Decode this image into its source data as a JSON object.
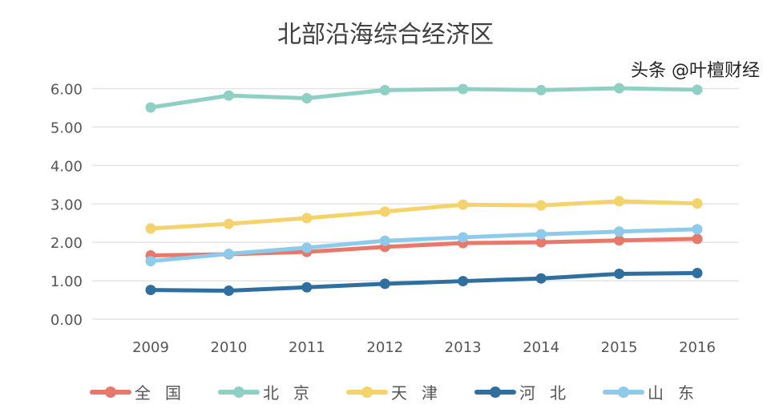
{
  "chart_data": {
    "type": "line",
    "title": "北部沿海综合经济区",
    "categories": [
      "2009",
      "2010",
      "2011",
      "2012",
      "2013",
      "2014",
      "2015",
      "2016"
    ],
    "ylim": [
      0,
      6
    ],
    "yticks": [
      "0.00",
      "1.00",
      "2.00",
      "3.00",
      "4.00",
      "5.00",
      "6.00"
    ],
    "grid": true,
    "legend_position": "bottom",
    "series": [
      {
        "name": "全　国",
        "color": "#e8786a",
        "values": [
          1.66,
          1.69,
          1.75,
          1.88,
          1.98,
          2.0,
          2.05,
          2.09
        ]
      },
      {
        "name": "北　京",
        "color": "#8fd0c4",
        "values": [
          5.51,
          5.82,
          5.75,
          5.96,
          5.99,
          5.96,
          6.01,
          5.97
        ]
      },
      {
        "name": "天　津",
        "color": "#f3d36a",
        "values": [
          2.36,
          2.48,
          2.63,
          2.8,
          2.98,
          2.96,
          3.07,
          3.01
        ]
      },
      {
        "name": "河　北",
        "color": "#2f6f9f",
        "values": [
          0.76,
          0.74,
          0.83,
          0.92,
          0.99,
          1.06,
          1.18,
          1.2
        ]
      },
      {
        "name": "山　东",
        "color": "#8ecbea",
        "values": [
          1.51,
          1.7,
          1.86,
          2.04,
          2.13,
          2.21,
          2.28,
          2.34
        ]
      }
    ]
  },
  "watermark": "头条 @叶檀财经"
}
